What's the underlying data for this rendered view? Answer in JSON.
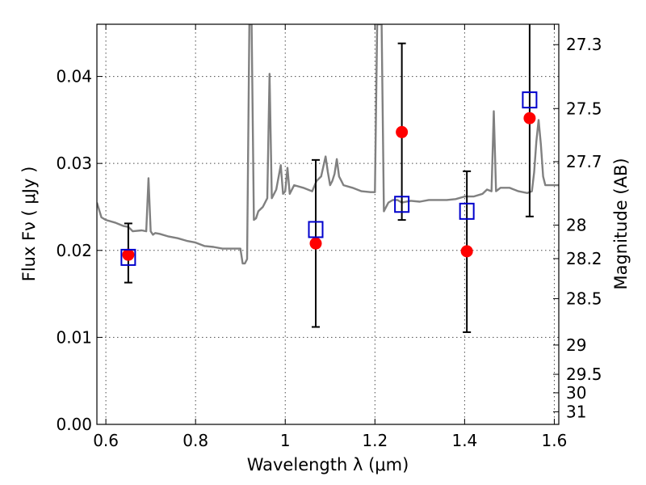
{
  "chart_data": {
    "type": "scatter",
    "title": "",
    "xlabel": "Wavelength  λ (μm)",
    "ylabel": "Flux  Fν  ( μJy )",
    "y2label": "Magnitude (AB)",
    "xlim": [
      0.58,
      1.61
    ],
    "ylim": [
      0.0,
      0.046
    ],
    "grid": true,
    "x_ticks": [
      {
        "value": 0.6,
        "label": "0.6"
      },
      {
        "value": 0.8,
        "label": "0.8"
      },
      {
        "value": 1.0,
        "label": "1"
      },
      {
        "value": 1.2,
        "label": "1.2"
      },
      {
        "value": 1.4,
        "label": "1.4"
      },
      {
        "value": 1.6,
        "label": "1.6"
      }
    ],
    "y_ticks": [
      {
        "value": 0.0,
        "label": "0.00"
      },
      {
        "value": 0.01,
        "label": "0.01"
      },
      {
        "value": 0.02,
        "label": "0.02"
      },
      {
        "value": 0.03,
        "label": "0.03"
      },
      {
        "value": 0.04,
        "label": "0.04"
      }
    ],
    "magnitude_ticks": [
      {
        "value": 27.3,
        "label": "27.3"
      },
      {
        "value": 27.5,
        "label": "27.5"
      },
      {
        "value": 27.7,
        "label": "27.7"
      },
      {
        "value": 28.0,
        "label": "28"
      },
      {
        "value": 28.2,
        "label": "28.2"
      },
      {
        "value": 28.5,
        "label": "28.5"
      },
      {
        "value": 29.0,
        "label": "29"
      },
      {
        "value": 29.5,
        "label": "29.5"
      },
      {
        "value": 30.0,
        "label": "30"
      },
      {
        "value": 31.0,
        "label": "31"
      }
    ],
    "series": [
      {
        "kind": "line",
        "color": "#808080",
        "x": [
          0.58,
          0.59,
          0.6,
          0.62,
          0.64,
          0.65,
          0.66,
          0.68,
          0.69,
          0.695,
          0.7,
          0.705,
          0.71,
          0.72,
          0.74,
          0.76,
          0.78,
          0.8,
          0.82,
          0.84,
          0.86,
          0.88,
          0.9,
          0.905,
          0.91,
          0.915,
          0.92,
          0.925,
          0.93,
          0.935,
          0.94,
          0.95,
          0.96,
          0.965,
          0.97,
          0.975,
          0.98,
          0.99,
          0.995,
          1.0,
          1.005,
          1.01,
          1.02,
          1.04,
          1.06,
          1.07,
          1.08,
          1.09,
          1.095,
          1.1,
          1.105,
          1.11,
          1.115,
          1.12,
          1.125,
          1.13,
          1.15,
          1.17,
          1.19,
          1.2,
          1.205,
          1.21,
          1.215,
          1.22,
          1.225,
          1.23,
          1.24,
          1.25,
          1.26,
          1.28,
          1.3,
          1.32,
          1.34,
          1.36,
          1.38,
          1.4,
          1.42,
          1.44,
          1.45,
          1.46,
          1.465,
          1.47,
          1.475,
          1.48,
          1.5,
          1.52,
          1.54,
          1.55,
          1.555,
          1.56,
          1.565,
          1.57,
          1.575,
          1.58,
          1.585,
          1.59,
          1.6,
          1.61
        ],
        "values": [
          0.0255,
          0.0238,
          0.0235,
          0.0232,
          0.0228,
          0.0227,
          0.0222,
          0.0223,
          0.0222,
          0.0283,
          0.0222,
          0.0218,
          0.022,
          0.0219,
          0.0216,
          0.0214,
          0.0211,
          0.0209,
          0.0205,
          0.0204,
          0.0202,
          0.0202,
          0.0202,
          0.0185,
          0.0185,
          0.019,
          0.046,
          0.046,
          0.0235,
          0.0237,
          0.0245,
          0.025,
          0.026,
          0.0403,
          0.026,
          0.0265,
          0.027,
          0.0298,
          0.0265,
          0.0268,
          0.0295,
          0.0265,
          0.0275,
          0.0272,
          0.0268,
          0.028,
          0.0285,
          0.0308,
          0.029,
          0.0275,
          0.028,
          0.0288,
          0.0305,
          0.0285,
          0.028,
          0.0275,
          0.0272,
          0.0268,
          0.0267,
          0.0267,
          0.046,
          0.046,
          0.046,
          0.0245,
          0.025,
          0.0255,
          0.0258,
          0.0258,
          0.0255,
          0.0257,
          0.0256,
          0.0258,
          0.0258,
          0.0258,
          0.0259,
          0.0262,
          0.0262,
          0.0265,
          0.027,
          0.0268,
          0.036,
          0.0268,
          0.027,
          0.0272,
          0.0272,
          0.0268,
          0.0266,
          0.0268,
          0.029,
          0.0325,
          0.035,
          0.0322,
          0.0285,
          0.0275,
          0.0275,
          0.0275,
          0.0275,
          0.0275
        ]
      },
      {
        "kind": "points",
        "marker": "circle",
        "color": "#ff0000",
        "x": [
          0.65,
          1.068,
          1.26,
          1.405,
          1.545
        ],
        "values": [
          0.0195,
          0.0208,
          0.0336,
          0.0199,
          0.0352
        ],
        "error_low": [
          0.0163,
          0.0112,
          0.0235,
          0.0106,
          0.0239
        ],
        "error_high": [
          0.0231,
          0.0304,
          0.0438,
          0.0291,
          0.0475
        ]
      },
      {
        "kind": "points",
        "marker": "open-square",
        "color": "#0000cc",
        "x": [
          0.65,
          1.068,
          1.26,
          1.405,
          1.545
        ],
        "values": [
          0.0192,
          0.0224,
          0.0253,
          0.0245,
          0.0373
        ]
      }
    ]
  }
}
